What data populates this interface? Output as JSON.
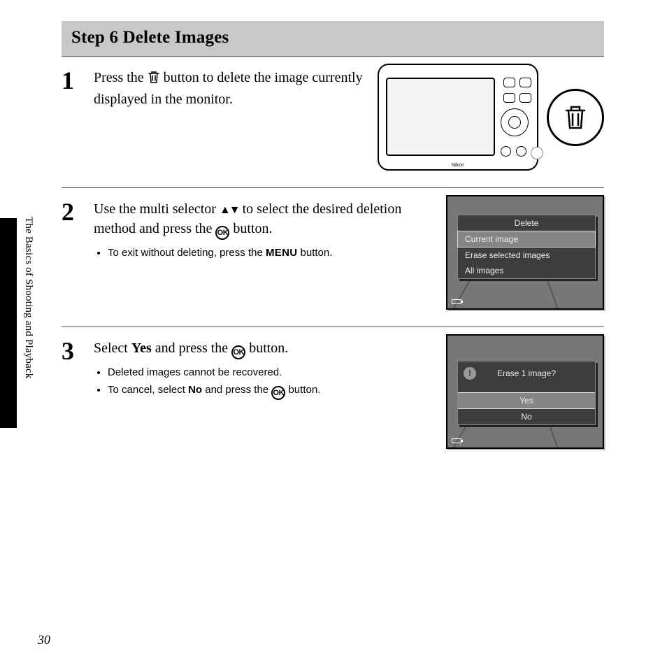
{
  "heading": "Step 6 Delete Images",
  "side_label": "The Basics of Shooting and Playback",
  "page_number": "30",
  "steps": [
    {
      "num": "1",
      "text_before": "Press the ",
      "text_after": " button to delete the image currently displayed in the monitor.",
      "bullets": []
    },
    {
      "num": "2",
      "text_parts": {
        "a": "Use the multi selector ",
        "b": " to select the desired deletion method and press the ",
        "c": " button."
      },
      "bullet_pre": "To exit without deleting, press the ",
      "bullet_post": " button.",
      "menu_btn": "MENU"
    },
    {
      "num": "3",
      "text_parts": {
        "a": "Select ",
        "b": "Yes",
        "c": " and press the ",
        "d": " button."
      },
      "bullets_a": "Deleted images cannot be recovered.",
      "bullets_b_pre": "To cancel, select ",
      "bullets_b_bold": "No",
      "bullets_b_mid": " and press the ",
      "bullets_b_post": " button."
    }
  ],
  "screen2": {
    "title": "Delete",
    "items": [
      "Current image",
      "Erase selected images",
      "All images"
    ],
    "highlight_index": 0
  },
  "screen3": {
    "title": "Erase 1 image?",
    "options": [
      "Yes",
      "No"
    ],
    "highlight_index": 0
  },
  "camera_brand": "Nikon",
  "ok_label": "OK"
}
